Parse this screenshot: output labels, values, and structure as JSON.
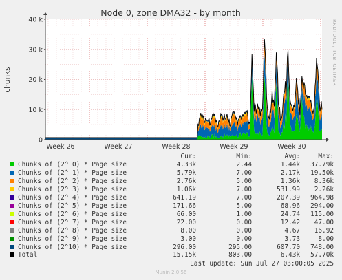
{
  "chart_data": {
    "type": "area",
    "title": "Node 0, zone DMA32 - by month",
    "ylabel": "chunks",
    "side_label": "RRDTOOL / TOBI OETIKER",
    "ylim": [
      0,
      40000
    ],
    "y_ticks": [
      "0",
      "10 k",
      "20 k",
      "30 k",
      "40 k"
    ],
    "y_tick_values": [
      0,
      10000,
      20000,
      30000,
      40000
    ],
    "x_ticks": [
      "Week 26",
      "Week 27",
      "Week 28",
      "Week 29",
      "Week 30"
    ],
    "grid": true,
    "legend_headers": [
      "Cur:",
      "Min:",
      "Avg:",
      "Max:"
    ],
    "series": [
      {
        "name": "Chunks of (2^ 0) * Page size",
        "color": "#00cc00",
        "cur": "4.33k",
        "min": "2.44",
        "avg": "1.44k",
        "max": "37.79k"
      },
      {
        "name": "Chunks of (2^ 1) * Page size",
        "color": "#0066b3",
        "cur": "5.79k",
        "min": "7.00",
        "avg": "2.17k",
        "max": "19.50k"
      },
      {
        "name": "Chunks of (2^ 2) * Page size",
        "color": "#ff8000",
        "cur": "2.76k",
        "min": "5.00",
        "avg": "1.36k",
        "max": "8.36k"
      },
      {
        "name": "Chunks of (2^ 3) * Page size",
        "color": "#ffcc00",
        "cur": "1.06k",
        "min": "7.00",
        "avg": "531.99",
        "max": "2.26k"
      },
      {
        "name": "Chunks of (2^ 4) * Page size",
        "color": "#330099",
        "cur": "641.19",
        "min": "7.00",
        "avg": "207.39",
        "max": "964.98"
      },
      {
        "name": "Chunks of (2^ 5) * Page size",
        "color": "#990099",
        "cur": "171.66",
        "min": "5.00",
        "avg": "68.96",
        "max": "294.00"
      },
      {
        "name": "Chunks of (2^ 6) * Page size",
        "color": "#ccff00",
        "cur": "66.00",
        "min": "1.00",
        "avg": "24.74",
        "max": "115.00"
      },
      {
        "name": "Chunks of (2^ 7) * Page size",
        "color": "#ff0000",
        "cur": "22.00",
        "min": "0.00",
        "avg": "12.42",
        "max": "47.00"
      },
      {
        "name": "Chunks of (2^ 8) * Page size",
        "color": "#808080",
        "cur": "8.00",
        "min": "0.00",
        "avg": "4.67",
        "max": "16.92"
      },
      {
        "name": "Chunks of (2^ 9) * Page size",
        "color": "#008f00",
        "cur": "3.00",
        "min": "0.00",
        "avg": "3.73",
        "max": "8.00"
      },
      {
        "name": "Chunks of (2^10) * Page size",
        "color": "#00487d",
        "cur": "296.00",
        "min": "295.00",
        "avg": "607.70",
        "max": "748.00"
      },
      {
        "name": "Total",
        "color": "#000000",
        "cur": "15.15k",
        "min": "803.00",
        "avg": "6.43k",
        "max": "57.70k"
      }
    ]
  },
  "footer": {
    "last_update": "Last update:  Sun Jul 27 03:00:05 2025",
    "munin_version": "Munin 2.0.56"
  }
}
